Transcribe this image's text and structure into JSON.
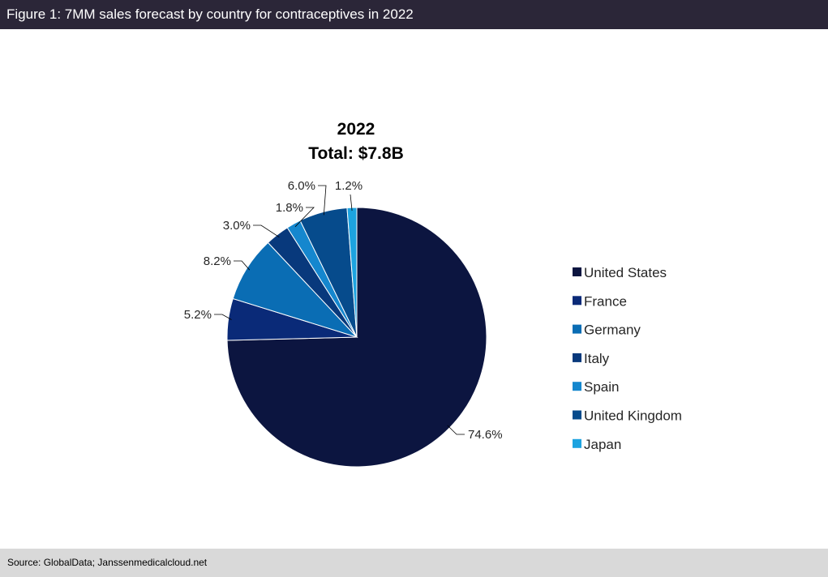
{
  "figure": {
    "title": "Figure 1: 7MM sales forecast by country for contraceptives in 2022",
    "source": "Source: GlobalData; Janssenmedicalcloud.net"
  },
  "chart_data": {
    "type": "pie",
    "title_line1": "2022",
    "title_line2": "Total: $7.8B",
    "legend_position": "right",
    "slices": [
      {
        "name": "United States",
        "value": 74.6,
        "label": "74.6%",
        "color": "#0c1540"
      },
      {
        "name": "France",
        "value": 5.2,
        "label": "5.2%",
        "color": "#0a2a78"
      },
      {
        "name": "Germany",
        "value": 8.2,
        "label": "8.2%",
        "color": "#0a6db4"
      },
      {
        "name": "Italy",
        "value": 3.0,
        "label": "3.0%",
        "color": "#08397c"
      },
      {
        "name": "Spain",
        "value": 1.8,
        "label": "1.8%",
        "color": "#1587ce"
      },
      {
        "name": "United Kingdom",
        "value": 6.0,
        "label": "6.0%",
        "color": "#064b8c"
      },
      {
        "name": "Japan",
        "value": 1.2,
        "label": "1.2%",
        "color": "#1da3e0"
      }
    ]
  }
}
